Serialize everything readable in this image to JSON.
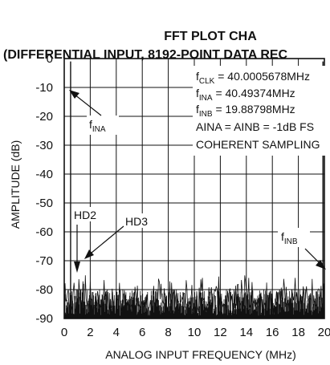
{
  "chart_data": {
    "type": "line",
    "title": "FFT PLOT CHA",
    "subtitle": "(DIFFERENTIAL INPUT, 8192-POINT DATA REC",
    "xlabel": "ANALOG INPUT FREQUENCY (MHz)",
    "ylabel": "AMPLITUDE (dB)",
    "xlim": [
      0,
      20
    ],
    "ylim": [
      -90,
      0
    ],
    "x_ticks": [
      "0",
      "2",
      "4",
      "6",
      "8",
      "10",
      "12",
      "14",
      "16",
      "18",
      "20"
    ],
    "y_ticks": [
      "0",
      "-10",
      "-20",
      "-30",
      "-40",
      "-50",
      "-60",
      "-70",
      "-80",
      "-90"
    ],
    "grid": true,
    "noise_floor_db": [
      -90,
      -75
    ],
    "peaks": [
      {
        "x": 0.49,
        "y": -1
      },
      {
        "x": 19.89,
        "y": -1
      },
      {
        "x": 0.98,
        "y": -80
      },
      {
        "x": 1.47,
        "y": -78
      }
    ],
    "annotations": {
      "fclk": {
        "main": "f",
        "sub": "CLK",
        "rest": " = 40.0005678MHz"
      },
      "fina": {
        "main": "f",
        "sub": "INA",
        "rest": " = 40.49374MHz"
      },
      "finb": {
        "main": "f",
        "sub": "INB",
        "rest": " = 19.88798MHz"
      },
      "aina": "AINA = AINB = -1dB FS",
      "coherent": "COHERENT SAMPLING",
      "fina_label": {
        "main": "f",
        "sub": "INA"
      },
      "finb_label": {
        "main": "f",
        "sub": "INB"
      },
      "hd2": "HD2",
      "hd3": "HD3"
    }
  }
}
